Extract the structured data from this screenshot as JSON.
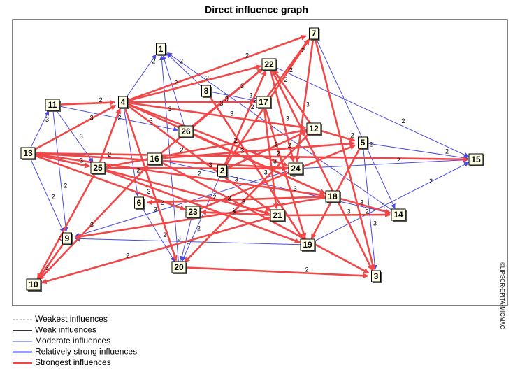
{
  "title": "Direct influence graph",
  "copyright": "©LIPSOR-EPITA-MICMAC",
  "legend": [
    {
      "label": "Weakest influences",
      "color": "#9a9a9a"
    },
    {
      "label": "Weak influences",
      "color": "#333333"
    },
    {
      "label": "Moderate influences",
      "color": "#4a4ae0"
    },
    {
      "label": "Relatively strong influences",
      "color": "#4040ff"
    },
    {
      "label": "Strongest influences",
      "color": "#f04848"
    }
  ],
  "nodes": [
    {
      "label": "1"
    },
    {
      "label": "2"
    },
    {
      "label": "3"
    },
    {
      "label": "4"
    },
    {
      "label": "5"
    },
    {
      "label": "6"
    },
    {
      "label": "7"
    },
    {
      "label": "8"
    },
    {
      "label": "9"
    },
    {
      "label": "10"
    },
    {
      "label": "11"
    },
    {
      "label": "12"
    },
    {
      "label": "13"
    },
    {
      "label": "14"
    },
    {
      "label": "15"
    },
    {
      "label": "16"
    },
    {
      "label": "17"
    },
    {
      "label": "18"
    },
    {
      "label": "19"
    },
    {
      "label": "20"
    },
    {
      "label": "21"
    },
    {
      "label": "22"
    },
    {
      "label": "23"
    },
    {
      "label": "24"
    },
    {
      "label": "25"
    },
    {
      "label": "26"
    }
  ],
  "edges": [
    {
      "s": 12,
      "t": 14,
      "label": "2",
      "style": 4
    },
    {
      "s": 12,
      "t": 3,
      "label": "3",
      "style": 4
    },
    {
      "s": 12,
      "t": 24,
      "label": "3",
      "style": 4
    },
    {
      "s": 12,
      "t": 8,
      "label": "2",
      "style": 2
    },
    {
      "s": 12,
      "t": 10,
      "label": "3",
      "style": 2
    },
    {
      "s": 12,
      "t": 22,
      "label": "3",
      "style": 4
    },
    {
      "s": 12,
      "t": 17,
      "label": "2",
      "style": 4
    },
    {
      "s": 10,
      "t": 3,
      "label": "2",
      "style": 4
    },
    {
      "s": 10,
      "t": 25,
      "label": "3",
      "style": 2
    },
    {
      "s": 10,
      "t": 24,
      "label": "3",
      "style": 2
    },
    {
      "s": 10,
      "t": 8,
      "label": "2",
      "style": 2
    },
    {
      "s": 3,
      "t": 0,
      "label": "2",
      "style": 2
    },
    {
      "s": 3,
      "t": 21,
      "label": "2",
      "style": 4
    },
    {
      "s": 3,
      "t": 6,
      "label": "2",
      "style": 4
    },
    {
      "s": 3,
      "t": 16,
      "label": "3",
      "style": 4
    },
    {
      "s": 3,
      "t": 11,
      "label": "3",
      "style": 4
    },
    {
      "s": 3,
      "t": 23,
      "label": "2",
      "style": 4
    },
    {
      "s": 3,
      "t": 20,
      "label": "3",
      "style": 4
    },
    {
      "s": 3,
      "t": 17,
      "label": "3",
      "style": 4
    },
    {
      "s": 3,
      "t": 19,
      "label": "2",
      "style": 4
    },
    {
      "s": 3,
      "t": 5,
      "label": "2",
      "style": 2
    },
    {
      "s": 15,
      "t": 9,
      "label": "3",
      "style": 4
    },
    {
      "s": 24,
      "t": 9,
      "label": "3",
      "style": 4
    },
    {
      "s": 24,
      "t": 3,
      "label": "2",
      "style": 4
    },
    {
      "s": 24,
      "t": 23,
      "label": "3",
      "style": 4
    },
    {
      "s": 24,
      "t": 18,
      "label": "2",
      "style": 4
    },
    {
      "s": 24,
      "t": 20,
      "label": "3",
      "style": 4
    },
    {
      "s": 15,
      "t": 21,
      "label": "3",
      "style": 4
    },
    {
      "s": 15,
      "t": 4,
      "label": "2",
      "style": 4
    },
    {
      "s": 15,
      "t": 13,
      "label": "3",
      "style": 2
    },
    {
      "s": 15,
      "t": 2,
      "label": "3",
      "style": 4
    },
    {
      "s": 25,
      "t": 21,
      "label": "3",
      "style": 4
    },
    {
      "s": 25,
      "t": 17,
      "label": "2",
      "style": 4
    },
    {
      "s": 25,
      "t": 0,
      "label": "2",
      "style": 2
    },
    {
      "s": 7,
      "t": 0,
      "label": "3",
      "style": 2
    },
    {
      "s": 7,
      "t": 16,
      "label": "2",
      "style": 2
    },
    {
      "s": 7,
      "t": 18,
      "label": "3",
      "style": 4
    },
    {
      "s": 1,
      "t": 21,
      "label": "3",
      "style": 4
    },
    {
      "s": 1,
      "t": 6,
      "label": "2",
      "style": 4
    },
    {
      "s": 1,
      "t": 11,
      "label": "3",
      "style": 4
    },
    {
      "s": 1,
      "t": 19,
      "label": "2",
      "style": 2
    },
    {
      "s": 16,
      "t": 6,
      "label": "2",
      "style": 4
    },
    {
      "s": 16,
      "t": 20,
      "label": "3",
      "style": 4
    },
    {
      "s": 16,
      "t": 18,
      "label": "3",
      "style": 4
    },
    {
      "s": 21,
      "t": 2,
      "label": "3",
      "style": 4
    },
    {
      "s": 21,
      "t": 23,
      "label": "3",
      "style": 4
    },
    {
      "s": 21,
      "t": 14,
      "label": "2",
      "style": 2
    },
    {
      "s": 6,
      "t": 2,
      "label": "3",
      "style": 4
    },
    {
      "s": 6,
      "t": 23,
      "label": "3",
      "style": 4
    },
    {
      "s": 6,
      "t": 13,
      "label": "2",
      "style": 2
    },
    {
      "s": 11,
      "t": 4,
      "label": "2",
      "style": 4
    },
    {
      "s": 11,
      "t": 19,
      "label": "3",
      "style": 4
    },
    {
      "s": 11,
      "t": 24,
      "label": "2",
      "style": 4
    },
    {
      "s": 23,
      "t": 12,
      "label": "2",
      "style": 4
    },
    {
      "s": 23,
      "t": 14,
      "label": "2",
      "style": 2
    },
    {
      "s": 23,
      "t": 8,
      "label": "3",
      "style": 2
    },
    {
      "s": 4,
      "t": 14,
      "label": "2",
      "style": 2
    },
    {
      "s": 4,
      "t": 18,
      "label": "3",
      "style": 4
    },
    {
      "s": 4,
      "t": 2,
      "label": "3",
      "style": 2
    },
    {
      "s": 17,
      "t": 13,
      "label": "3",
      "style": 4
    },
    {
      "s": 17,
      "t": 8,
      "label": "3",
      "style": 4
    },
    {
      "s": 17,
      "t": 5,
      "label": "2",
      "style": 4
    },
    {
      "s": 20,
      "t": 13,
      "label": "2",
      "style": 4
    },
    {
      "s": 20,
      "t": 22,
      "label": "3",
      "style": 4
    },
    {
      "s": 20,
      "t": 9,
      "label": "2",
      "style": 4
    },
    {
      "s": 18,
      "t": 14,
      "label": "2",
      "style": 2
    },
    {
      "s": 18,
      "t": 8,
      "label": "3",
      "style": 2
    },
    {
      "s": 19,
      "t": 2,
      "label": "2",
      "style": 4
    },
    {
      "s": 19,
      "t": 0,
      "label": "3",
      "style": 2
    },
    {
      "s": 22,
      "t": 4,
      "label": "3",
      "style": 4
    },
    {
      "s": 22,
      "t": 19,
      "label": "2",
      "style": 2
    },
    {
      "s": 8,
      "t": 9,
      "label": "3",
      "style": 4
    },
    {
      "s": 5,
      "t": 19,
      "label": "2",
      "style": 2
    },
    {
      "s": 13,
      "t": 0,
      "label": "2",
      "style": 2
    },
    {
      "s": 11,
      "t": 21,
      "label": "2",
      "style": 4
    }
  ]
}
